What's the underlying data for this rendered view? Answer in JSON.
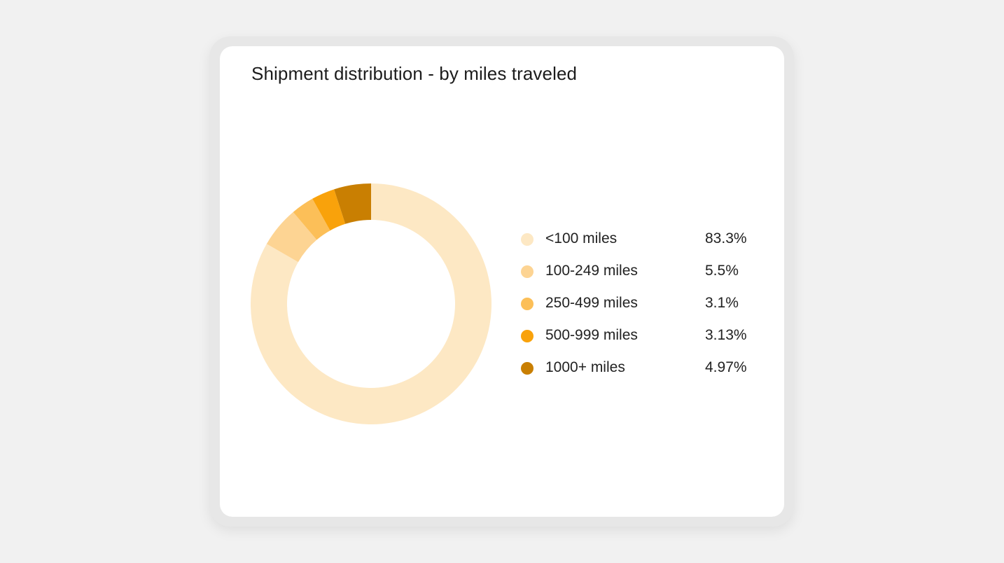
{
  "chart_data": {
    "type": "pie",
    "title": "Shipment distribution - by miles traveled",
    "categories": [
      "<100 miles",
      "100-249 miles",
      "250-499 miles",
      "500-999 miles",
      "1000+ miles"
    ],
    "values": [
      83.3,
      5.5,
      3.1,
      3.13,
      4.97
    ],
    "value_labels": [
      "83.3%",
      "5.5%",
      "3.1%",
      "3.13%",
      "4.97%"
    ],
    "colors": [
      "#fde8c4",
      "#fdd493",
      "#fcbf58",
      "#f9a20b",
      "#c97f02"
    ],
    "legend_placement": "right",
    "donut": true
  }
}
